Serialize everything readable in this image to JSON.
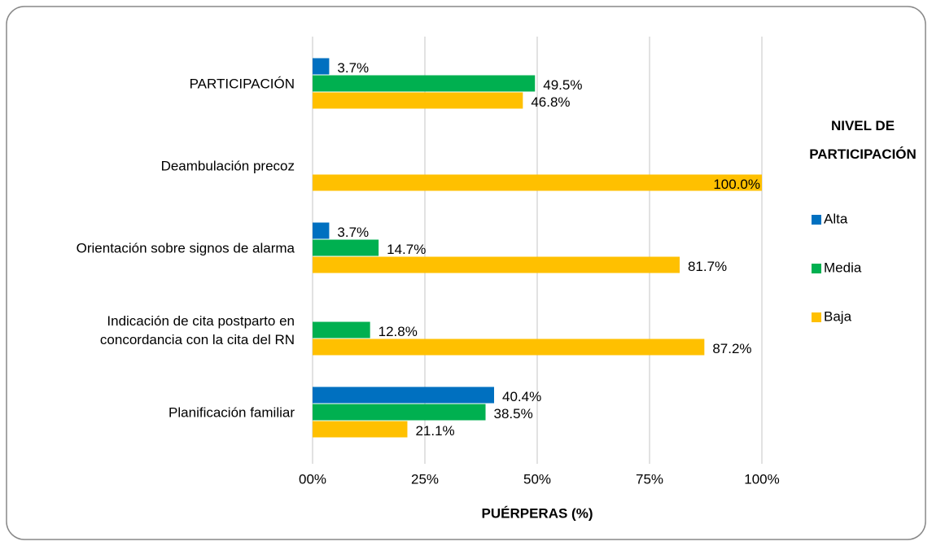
{
  "chart_data": {
    "type": "hbar",
    "categories": [
      "PARTICIPACIÓN",
      "Deambulación precoz",
      "Orientación sobre signos de alarma",
      "Indicación de cita postparto en\nconcordancia con la cita del RN",
      "Planificación familiar"
    ],
    "series": [
      {
        "name": "Alta",
        "color": "#0070c0",
        "values": [
          3.7,
          null,
          3.7,
          null,
          40.4
        ],
        "value_labels": [
          "3.7%",
          null,
          "3.7%",
          null,
          "40.4%"
        ]
      },
      {
        "name": "Media",
        "color": "#00b050",
        "values": [
          49.5,
          null,
          14.7,
          12.8,
          38.5
        ],
        "value_labels": [
          "49.5%",
          null,
          "14.7%",
          "12.8%",
          "38.5%"
        ]
      },
      {
        "name": "Baja",
        "color": "#ffc000",
        "values": [
          46.8,
          100.0,
          81.7,
          87.2,
          21.1
        ],
        "value_labels": [
          "46.8%",
          "100.0%",
          "81.7%",
          "87.2%",
          "21.1%"
        ]
      }
    ],
    "xlim": [
      0,
      100
    ],
    "xticks": [
      {
        "value": 0,
        "label": "00%"
      },
      {
        "value": 25,
        "label": "25%"
      },
      {
        "value": 50,
        "label": "50%"
      },
      {
        "value": 75,
        "label": "75%"
      },
      {
        "value": 100,
        "label": "100%"
      }
    ],
    "xlabel": "PUÉRPERAS (%)",
    "legend_title": "NIVEL DE\nPARTICIPACIÓN",
    "legend_position": "right",
    "grid": true
  }
}
